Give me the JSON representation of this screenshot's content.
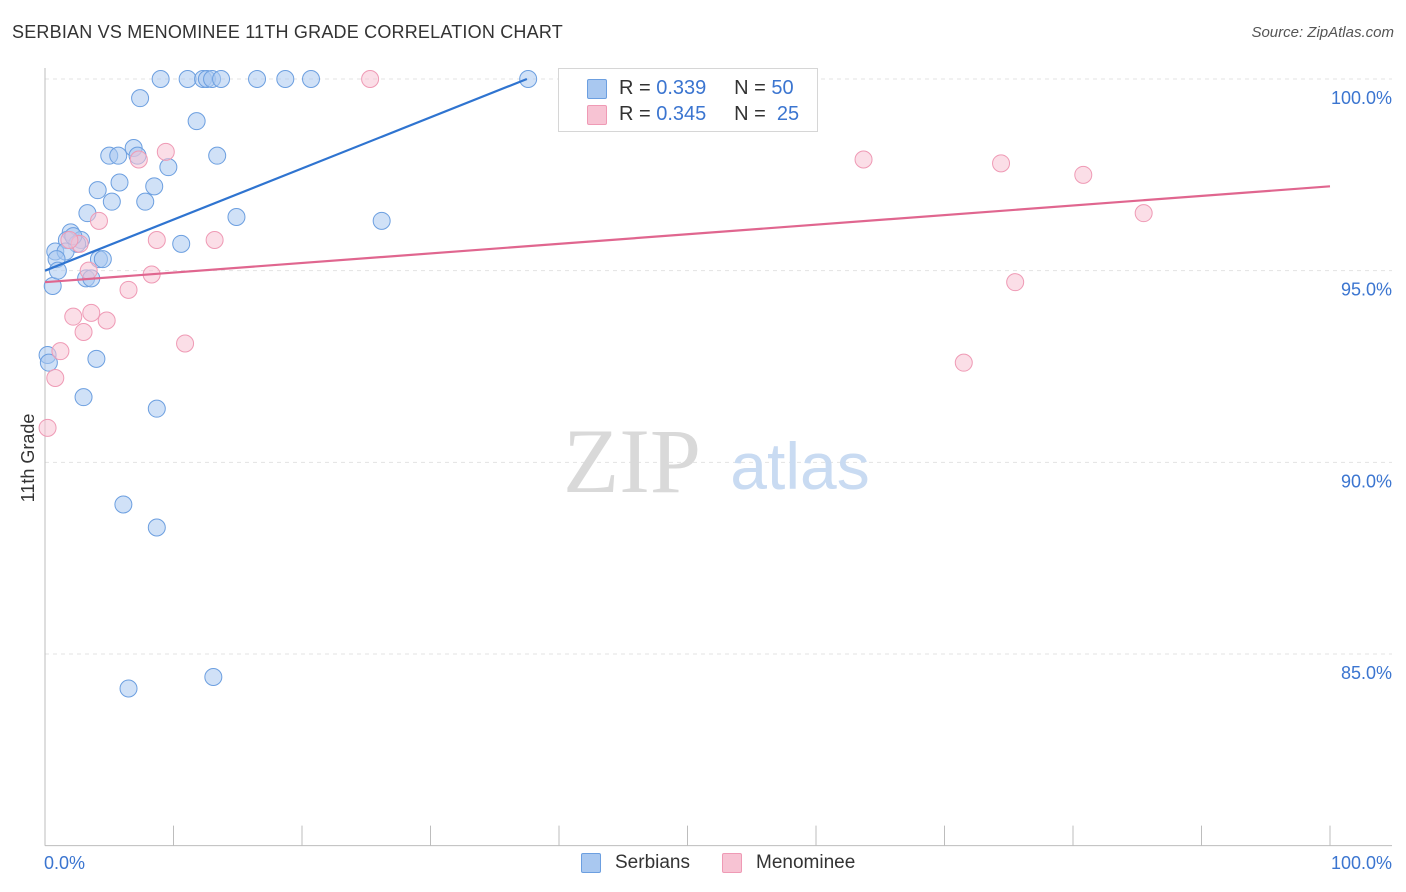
{
  "title": "SERBIAN VS MENOMINEE 11TH GRADE CORRELATION CHART",
  "source": "Source: ZipAtlas.com",
  "watermark": {
    "zip": "ZIP",
    "atlas": "atlas"
  },
  "legend": {
    "r_label": "R =",
    "n_label": "N =",
    "series": [
      {
        "name": "Serbians",
        "r": "0.339",
        "n": "50"
      },
      {
        "name": "Menominee",
        "r": "0.345",
        "n": "25"
      }
    ]
  },
  "colors": {
    "serbians_fill": "#a9c8f0",
    "serbians_stroke": "#6c9fe0",
    "serbians_line": "#2f74d0",
    "menominee_fill": "#f7c3d3",
    "menominee_stroke": "#ef9ab5",
    "menominee_line": "#e0668f",
    "axis_value": "#3b75d0"
  },
  "chart_data": {
    "type": "scatter",
    "title": "SERBIAN VS MENOMINEE 11TH GRADE CORRELATION CHART",
    "xlabel": "",
    "ylabel": "11th Grade",
    "xlim": [
      0,
      100
    ],
    "ylim": [
      80.0,
      100.5
    ],
    "x_tick_labels": [
      "0.0%",
      "100.0%"
    ],
    "y_ticks": [
      100,
      95,
      90,
      85
    ],
    "y_tick_labels": [
      "100.0%",
      "95.0%",
      "90.0%",
      "85.0%"
    ],
    "series": [
      {
        "name": "Serbians",
        "trendline": {
          "x": [
            0.0,
            37.5
          ],
          "y": [
            95.0,
            100.0
          ]
        },
        "points": [
          {
            "x": 9.0,
            "y": 100.0
          },
          {
            "x": 11.1,
            "y": 100.0
          },
          {
            "x": 12.3,
            "y": 100.0
          },
          {
            "x": 12.6,
            "y": 100.0
          },
          {
            "x": 13.0,
            "y": 100.0
          },
          {
            "x": 13.7,
            "y": 100.0
          },
          {
            "x": 16.5,
            "y": 100.0
          },
          {
            "x": 18.7,
            "y": 100.0
          },
          {
            "x": 20.7,
            "y": 100.0
          },
          {
            "x": 37.6,
            "y": 100.0
          },
          {
            "x": 7.4,
            "y": 99.5
          },
          {
            "x": 11.8,
            "y": 98.9
          },
          {
            "x": 6.9,
            "y": 98.2
          },
          {
            "x": 5.0,
            "y": 98.0
          },
          {
            "x": 5.7,
            "y": 98.0
          },
          {
            "x": 7.2,
            "y": 98.0
          },
          {
            "x": 13.4,
            "y": 98.0
          },
          {
            "x": 9.6,
            "y": 97.7
          },
          {
            "x": 5.8,
            "y": 97.3
          },
          {
            "x": 4.1,
            "y": 97.1
          },
          {
            "x": 8.5,
            "y": 97.2
          },
          {
            "x": 5.2,
            "y": 96.8
          },
          {
            "x": 7.8,
            "y": 96.8
          },
          {
            "x": 3.3,
            "y": 96.5
          },
          {
            "x": 14.9,
            "y": 96.4
          },
          {
            "x": 26.2,
            "y": 96.3
          },
          {
            "x": 2.0,
            "y": 96.0
          },
          {
            "x": 1.7,
            "y": 95.8
          },
          {
            "x": 2.8,
            "y": 95.8
          },
          {
            "x": 2.5,
            "y": 95.7
          },
          {
            "x": 10.6,
            "y": 95.7
          },
          {
            "x": 0.8,
            "y": 95.5
          },
          {
            "x": 1.6,
            "y": 95.5
          },
          {
            "x": 0.9,
            "y": 95.3
          },
          {
            "x": 4.2,
            "y": 95.3
          },
          {
            "x": 4.5,
            "y": 95.3
          },
          {
            "x": 3.2,
            "y": 94.8
          },
          {
            "x": 3.6,
            "y": 94.8
          },
          {
            "x": 0.6,
            "y": 94.6
          },
          {
            "x": 0.2,
            "y": 92.8
          },
          {
            "x": 0.3,
            "y": 92.6
          },
          {
            "x": 4.0,
            "y": 92.7
          },
          {
            "x": 3.0,
            "y": 91.7
          },
          {
            "x": 8.7,
            "y": 91.4
          },
          {
            "x": 6.1,
            "y": 88.9
          },
          {
            "x": 8.7,
            "y": 88.3
          },
          {
            "x": 13.1,
            "y": 84.4
          },
          {
            "x": 6.5,
            "y": 84.1
          },
          {
            "x": 1.0,
            "y": 95.0
          },
          {
            "x": 2.2,
            "y": 95.9
          }
        ]
      },
      {
        "name": "Menominee",
        "trendline": {
          "x": [
            0.0,
            100.0
          ],
          "y": [
            94.7,
            97.2
          ]
        },
        "points": [
          {
            "x": 25.3,
            "y": 100.0
          },
          {
            "x": 9.4,
            "y": 98.1
          },
          {
            "x": 7.3,
            "y": 97.9
          },
          {
            "x": 63.7,
            "y": 97.9
          },
          {
            "x": 74.4,
            "y": 97.8
          },
          {
            "x": 80.8,
            "y": 97.5
          },
          {
            "x": 85.5,
            "y": 96.5
          },
          {
            "x": 4.2,
            "y": 96.3
          },
          {
            "x": 13.2,
            "y": 95.8
          },
          {
            "x": 8.7,
            "y": 95.8
          },
          {
            "x": 2.7,
            "y": 95.7
          },
          {
            "x": 1.9,
            "y": 95.8
          },
          {
            "x": 8.3,
            "y": 94.9
          },
          {
            "x": 3.4,
            "y": 95.0
          },
          {
            "x": 75.5,
            "y": 94.7
          },
          {
            "x": 6.5,
            "y": 94.5
          },
          {
            "x": 2.2,
            "y": 93.8
          },
          {
            "x": 3.6,
            "y": 93.9
          },
          {
            "x": 4.8,
            "y": 93.7
          },
          {
            "x": 3.0,
            "y": 93.4
          },
          {
            "x": 10.9,
            "y": 93.1
          },
          {
            "x": 1.2,
            "y": 92.9
          },
          {
            "x": 71.5,
            "y": 92.6
          },
          {
            "x": 0.8,
            "y": 92.2
          },
          {
            "x": 0.2,
            "y": 90.9
          }
        ]
      }
    ]
  }
}
